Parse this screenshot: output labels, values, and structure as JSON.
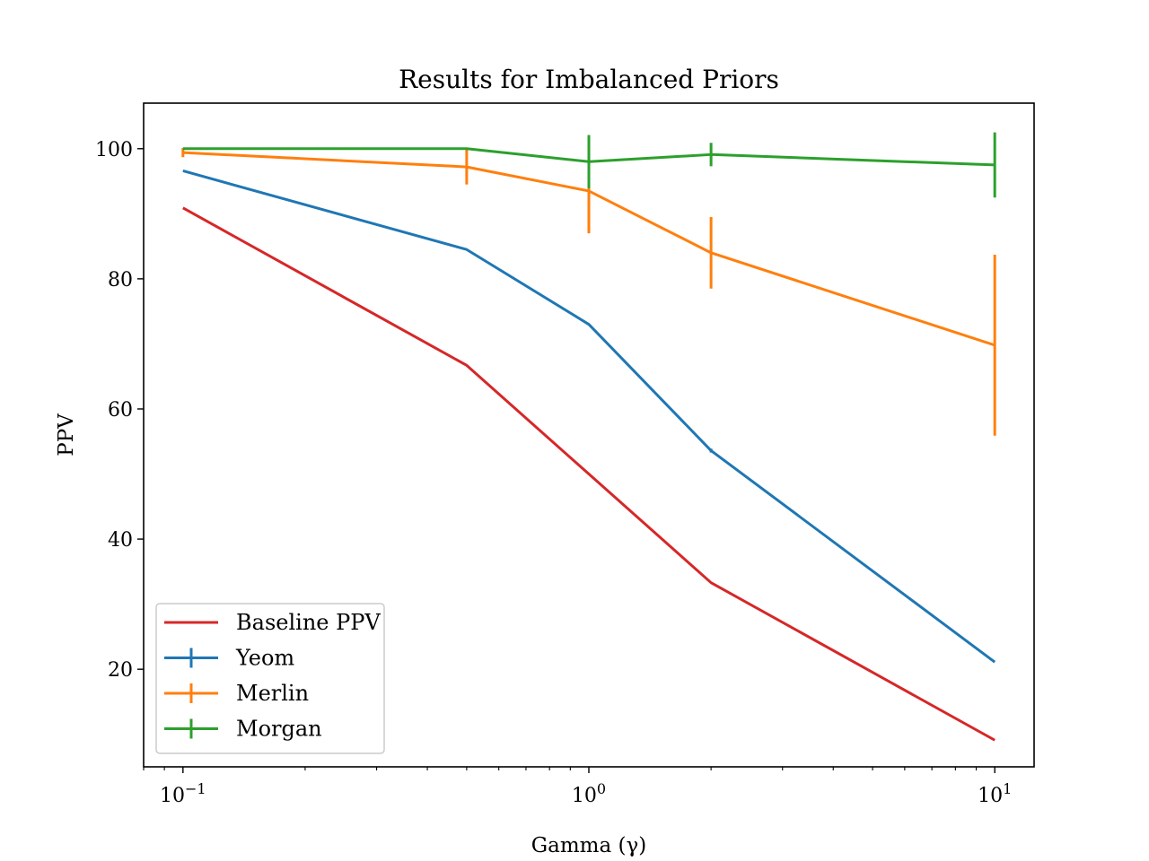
{
  "chart_data": {
    "type": "line",
    "title": "Results for Imbalanced Priors",
    "xlabel": "Gamma (γ)",
    "ylabel": "PPV",
    "xscale": "log",
    "xlim": [
      0.08,
      12.5
    ],
    "ylim": [
      5,
      107
    ],
    "x": [
      0.1,
      0.5,
      1,
      2,
      10
    ],
    "x_ticks": [
      {
        "value": 0.1,
        "base": "10",
        "exp": "−1"
      },
      {
        "value": 1,
        "base": "10",
        "exp": "0"
      },
      {
        "value": 10,
        "base": "10",
        "exp": "1"
      }
    ],
    "y_ticks": [
      20,
      40,
      60,
      80,
      100
    ],
    "grid": false,
    "legend_position": "lower-left",
    "series": [
      {
        "name": "Baseline PPV",
        "color": "#d62728",
        "values": [
          90.9,
          66.7,
          50.0,
          33.3,
          9.1
        ],
        "errors": null
      },
      {
        "name": "Yeom",
        "color": "#1f77b4",
        "values": [
          96.6,
          84.5,
          73.0,
          53.6,
          21.1
        ],
        "errors": [
          0,
          0,
          0,
          0.3,
          0
        ]
      },
      {
        "name": "Merlin",
        "color": "#ff7f0e",
        "values": [
          99.4,
          97.2,
          93.5,
          84.0,
          69.8
        ],
        "errors": [
          0.7,
          2.7,
          6.5,
          5.5,
          13.9
        ]
      },
      {
        "name": "Morgan",
        "color": "#2ca02c",
        "values": [
          100.0,
          100.0,
          98.0,
          99.1,
          97.5
        ],
        "errors": [
          0,
          0,
          4.1,
          1.8,
          5.0
        ]
      }
    ]
  }
}
